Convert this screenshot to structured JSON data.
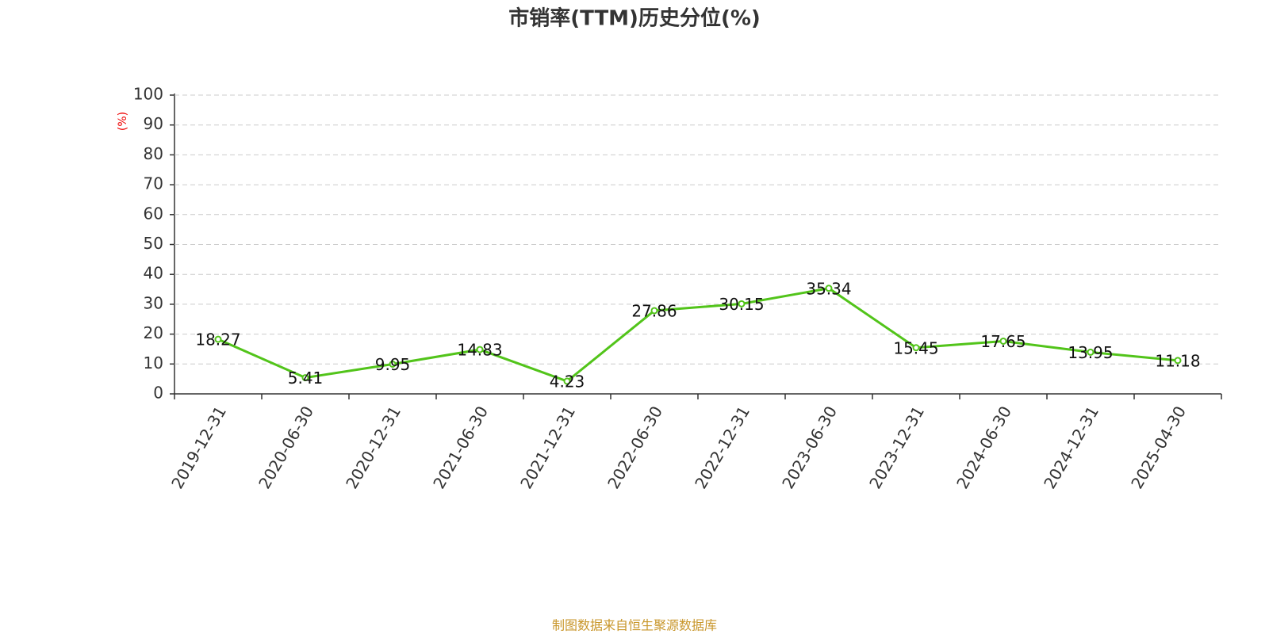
{
  "chart_data": {
    "type": "line",
    "title": "市销率(TTM)历史分位(%)",
    "ylabel": "(%)",
    "categories": [
      "2019-12-31",
      "2020-06-30",
      "2020-12-31",
      "2021-06-30",
      "2021-12-31",
      "2022-06-30",
      "2022-12-31",
      "2023-06-30",
      "2023-12-31",
      "2024-06-30",
      "2024-12-31",
      "2025-04-30"
    ],
    "values": [
      18.27,
      5.41,
      9.95,
      14.83,
      4.23,
      27.86,
      30.15,
      35.34,
      15.45,
      17.65,
      13.95,
      11.18
    ],
    "color": "#52c41a",
    "ylim": [
      0,
      100
    ],
    "yticks": [
      0,
      10,
      20,
      30,
      40,
      50,
      60,
      70,
      80,
      90,
      100
    ],
    "grid": true,
    "source": "制图数据来自恒生聚源数据库"
  }
}
